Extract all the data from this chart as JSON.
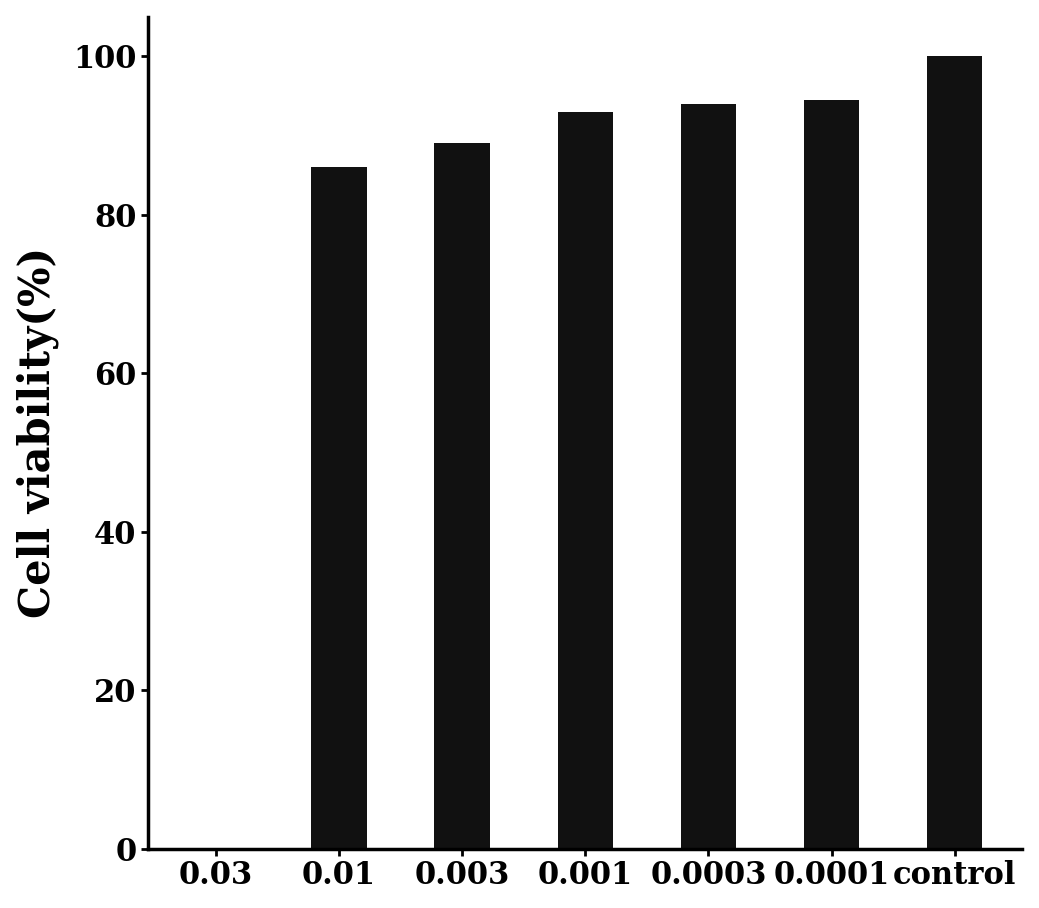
{
  "categories": [
    "0.03",
    "0.01",
    "0.003",
    "0.001",
    "0.0003",
    "0.0001",
    "control"
  ],
  "values": [
    0,
    86.0,
    89.0,
    93.0,
    94.0,
    94.5,
    100.0
  ],
  "bar_color": "#111111",
  "ylabel": "Cell viability(%)",
  "ylim": [
    0,
    105
  ],
  "yticks": [
    0,
    20,
    40,
    60,
    80,
    100
  ],
  "background_color": "#ffffff",
  "ylabel_fontsize": 30,
  "tick_fontsize": 22,
  "bar_width": 0.45
}
